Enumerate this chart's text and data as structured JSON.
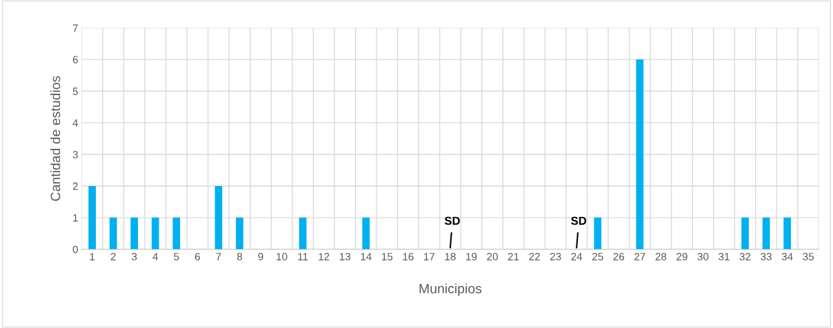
{
  "chart_data": {
    "type": "bar",
    "xlabel": "Municipios",
    "ylabel": "Cantidad de estudios",
    "categories": [
      "1",
      "2",
      "3",
      "4",
      "5",
      "6",
      "7",
      "8",
      "9",
      "10",
      "11",
      "12",
      "13",
      "14",
      "15",
      "16",
      "17",
      "18",
      "19",
      "20",
      "21",
      "22",
      "23",
      "24",
      "25",
      "26",
      "27",
      "28",
      "29",
      "30",
      "31",
      "32",
      "33",
      "34",
      "35"
    ],
    "values": [
      2,
      1,
      1,
      1,
      1,
      0,
      2,
      1,
      0,
      0,
      1,
      0,
      0,
      1,
      0,
      0,
      0,
      0,
      0,
      0,
      0,
      0,
      0,
      0,
      1,
      0,
      6,
      0,
      0,
      0,
      0,
      1,
      1,
      1,
      0
    ],
    "color": "#00b0f0",
    "ylim": [
      0,
      7
    ],
    "yticks": [
      0,
      1,
      2,
      3,
      4,
      5,
      6,
      7
    ],
    "grid": true,
    "annotations": [
      {
        "text": "SD",
        "x": "18",
        "y": 0
      },
      {
        "text": "SD",
        "x": "24",
        "y": 0
      }
    ]
  }
}
